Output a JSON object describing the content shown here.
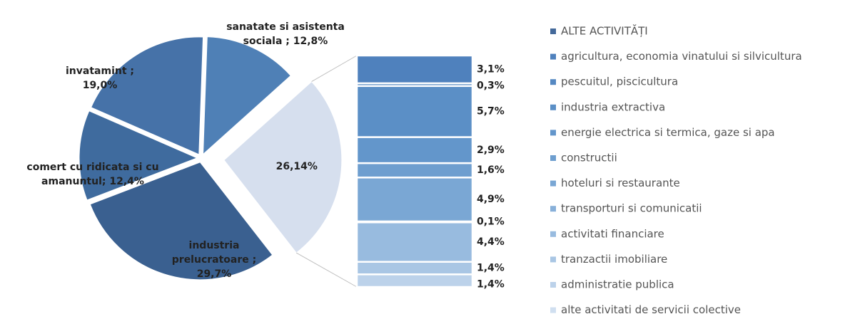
{
  "chart_data": {
    "type": "pie-of-bar",
    "pie": {
      "labels": [
        "sanatate si asistenta sociala ;",
        "industria prelucratoare ;",
        "comert cu ridicata si cu amanuntul;",
        "invatamint ;"
      ],
      "values": [
        12.8,
        29.7,
        12.4,
        19.0
      ],
      "value_labels": [
        "12,8%",
        "29,7%",
        "12,4%",
        "19,0%"
      ],
      "colors": [
        "#4f80b6",
        "#3a6090",
        "#3f6b9e",
        "#4672a8"
      ]
    },
    "other": {
      "label": "ALTE ACTIVITĂȚI",
      "value": 26.14,
      "value_label": "26,14%",
      "color": "#d6dfee"
    },
    "bar": {
      "categories": [
        "agricultura, economia vinatului si silvicultura",
        "pescuitul, piscicultura",
        "industria extractiva",
        "energie electrica si termica, gaze si apa",
        "constructii",
        "hoteluri si restaurante",
        "transporturi si comunicatii",
        "activitati financiare",
        "tranzactii imobiliare",
        "administratie publica",
        "alte activitati de servicii colective"
      ],
      "values": [
        3.1,
        0.3,
        5.7,
        2.9,
        1.6,
        4.9,
        0.1,
        4.4,
        1.4,
        1.4,
        null
      ],
      "value_labels": [
        "3,1%",
        "0,3%",
        "5,7%",
        "2,9%",
        "1,6%",
        "4,9%",
        "0,1%",
        "4,4%",
        "1,4%",
        "1,4%",
        null
      ],
      "colors": [
        "#4f81bd",
        "#5588c2",
        "#5b8fc6",
        "#6396cb",
        "#6e9ecf",
        "#7aa7d4",
        "#88b0d9",
        "#98bbdf",
        "#a9c6e4",
        "#bcd2ea",
        "#d0dff0"
      ]
    }
  }
}
